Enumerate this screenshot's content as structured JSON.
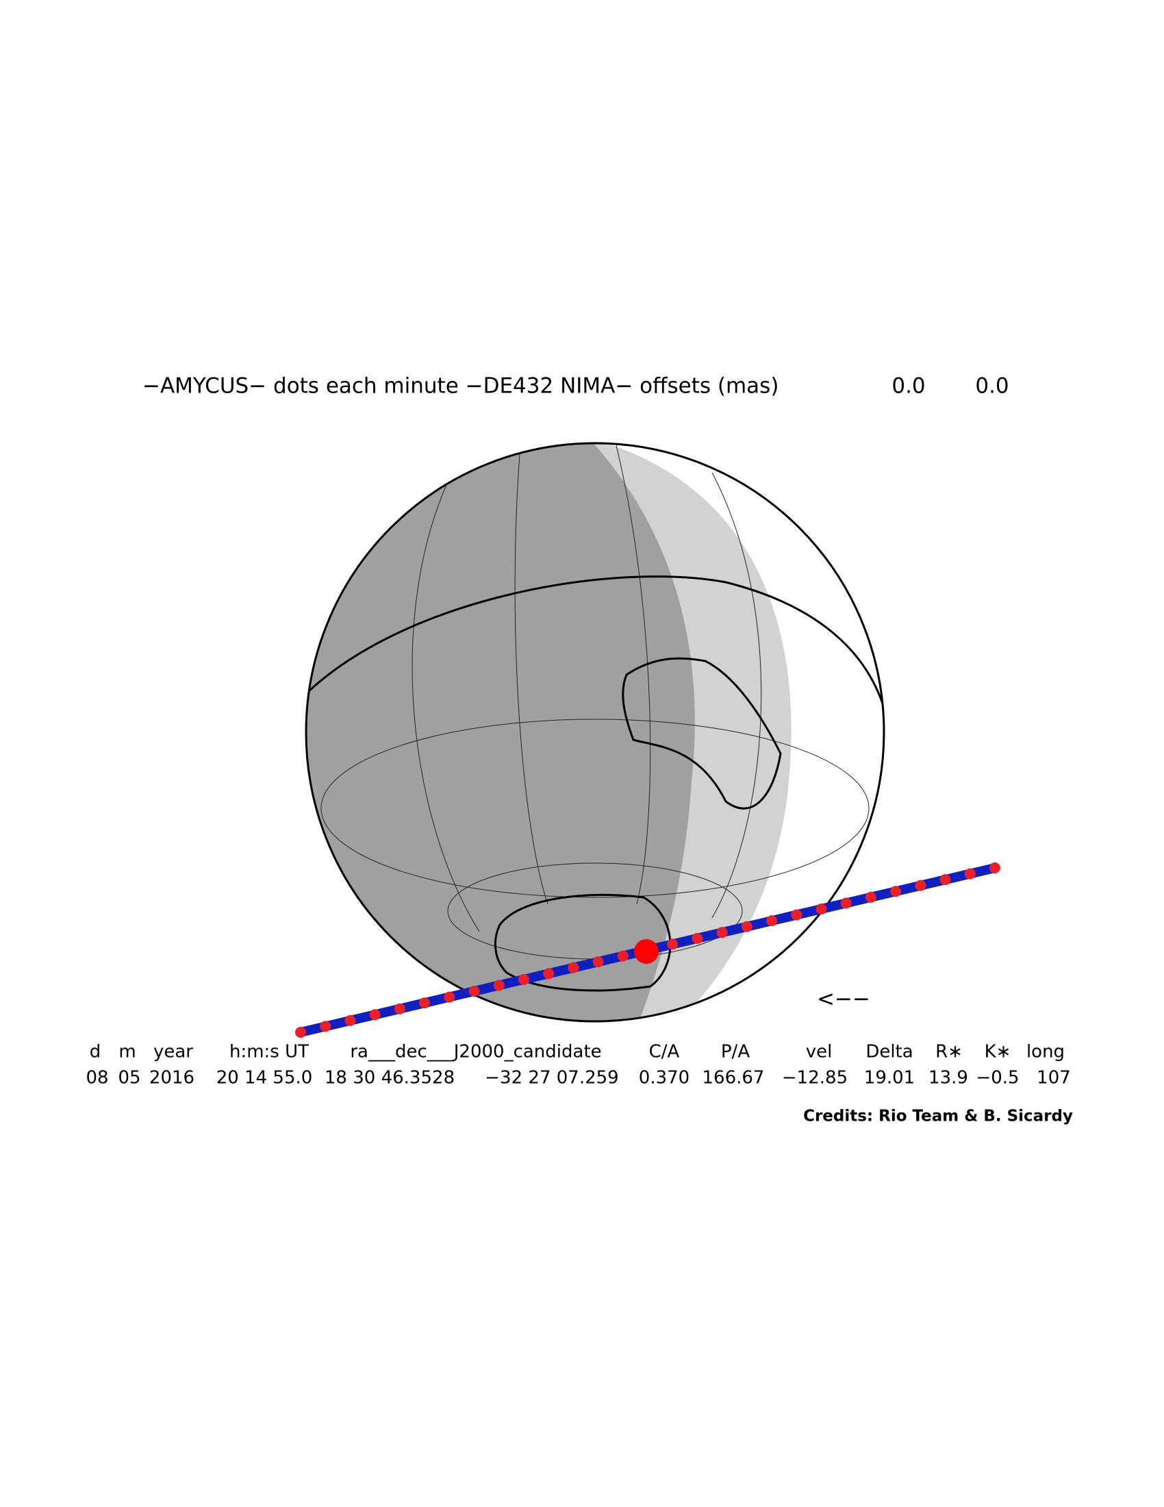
{
  "title": "−AMYCUS− dots each minute −DE432 NIMA− offsets (mas)",
  "offsets": [
    "0.0",
    "0.0"
  ],
  "table": {
    "headers": [
      "d",
      "m",
      "year",
      "h:m:s UT",
      "ra___dec___J2000_candidate",
      "C/A",
      "P/A",
      "vel",
      "Delta",
      "R∗",
      "K∗",
      "long"
    ],
    "values": [
      "08",
      "05",
      "2016",
      "20 14 55.0",
      "18 30 46.3528",
      "−32 27 07.259",
      "0.370",
      "166.67",
      "−12.85",
      "19.01",
      "13.9",
      "−0.5",
      "107"
    ]
  },
  "direction_arrow": "<−−",
  "credits": "Credits: Rio Team & B. Sicardy"
}
